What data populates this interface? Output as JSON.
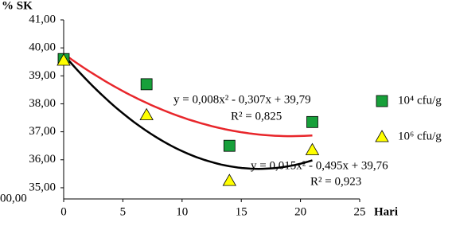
{
  "chart_data": {
    "type": "scatter",
    "y_label": "% SK",
    "x_label": "Hari",
    "x": [
      0,
      7,
      14,
      21
    ],
    "series": [
      {
        "name": "10⁴ cfu/g",
        "color": "#17a03a",
        "marker": "square",
        "values": [
          39.6,
          38.7,
          36.5,
          37.35
        ],
        "trendline": {
          "color": "#e8262b",
          "coefficients": [
            0.008,
            -0.307,
            39.79
          ],
          "equation": "y = 0,008x² - 0,307x + 39,79",
          "r2": "R² = 0,825"
        }
      },
      {
        "name": "10⁶ cfu/g",
        "color": "#ffff00",
        "marker": "triangle",
        "values": [
          39.55,
          37.6,
          35.25,
          36.35
        ],
        "trendline": {
          "color": "#000000",
          "coefficients": [
            0.015,
            -0.495,
            39.76
          ],
          "equation": "y = 0,015x² - 0,495x + 39,76",
          "r2": "R² = 0,923"
        }
      }
    ],
    "xlim": [
      0,
      25
    ],
    "xticks": [
      0,
      5,
      10,
      15,
      20,
      25
    ],
    "ylim": [
      34.6,
      41
    ],
    "yticks": [
      {
        "value": 35,
        "label": "35,00"
      },
      {
        "value": 36,
        "label": "36,00"
      },
      {
        "value": 37,
        "label": "37,00"
      },
      {
        "value": 38,
        "label": "38,00"
      },
      {
        "value": 39,
        "label": "39,00"
      },
      {
        "value": 40,
        "label": "40,00"
      },
      {
        "value": 41,
        "label": "41,00"
      }
    ],
    "axis_break_label": "00,00"
  }
}
